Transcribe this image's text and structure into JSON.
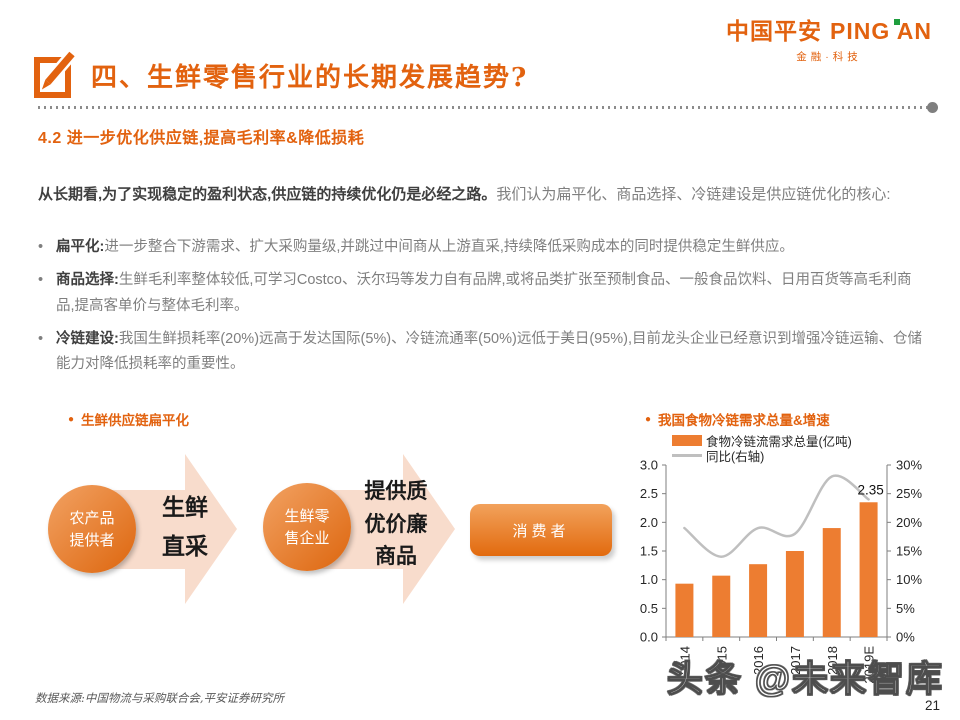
{
  "theme": {
    "accent": "#E2620F",
    "bar_color": "#ED7D31",
    "line_color": "#BFBFBF",
    "arrow_fill": "#F8DCCC",
    "circle_gradient_from": "#F2A263",
    "circle_gradient_to": "#DD660E",
    "logo_green": "#1E9E3E"
  },
  "header": {
    "logo_cn": "中国平安",
    "logo_en": "PING AN",
    "logo_tagline": "金融·科技"
  },
  "title": {
    "text": "四、生鲜零售行业的长期发展趋势?"
  },
  "subtitle": "4.2 进一步优化供应链,提高毛利率&降低损耗",
  "intro": {
    "bold": "从长期看,为了实现稳定的盈利状态,供应链的持续优化仍是必经之路。",
    "rest": "我们认为扁平化、商品选择、冷链建设是供应链优化的核心:"
  },
  "bullets": [
    {
      "marker": "•",
      "lead": "扁平化:",
      "text": "进一步整合下游需求、扩大采购量级,并跳过中间商从上游直采,持续降低采购成本的同时提供稳定生鲜供应。"
    },
    {
      "marker": "•",
      "lead": "商品选择:",
      "text": "生鲜毛利率整体较低,可学习Costco、沃尔玛等发力自有品牌,或将品类扩张至预制食品、一般食品饮料、日用百货等高毛利商品,提高客单价与整体毛利率。"
    },
    {
      "marker": "•",
      "lead": "冷链建设:",
      "text": "我国生鲜损耗率(20%)远高于发达国际(5%)、冷链流通率(50%)远低于美日(95%),目前龙头企业已经意识到增强冷链运输、仓储能力对降低损耗率的重要性。"
    }
  ],
  "diagram": {
    "marker": "●",
    "section_title": "生鲜供应链扁平化",
    "node1": "农产品\n提供者",
    "arrow1": "生鲜\n直采",
    "node2": "生鲜零\n售企业",
    "arrow2": "提供质\n优价廉\n商品",
    "node3": "消费者"
  },
  "chart": {
    "marker": "●",
    "section_title": "我国食物冷链需求总量&增速"
  },
  "chart_data": {
    "type": "bar",
    "title": "我国食物冷链需求总量&增速",
    "categories": [
      "2014",
      "2015",
      "2016",
      "2017",
      "2018",
      "2019E"
    ],
    "series": [
      {
        "name": "食物冷链流需求总量(亿吨)",
        "type": "bar",
        "axis": "left",
        "color": "#ED7D31",
        "values": [
          0.93,
          1.07,
          1.27,
          1.5,
          1.9,
          2.35
        ]
      },
      {
        "name": "同比(右轴)",
        "type": "line",
        "axis": "right",
        "color": "#BFBFBF",
        "values": [
          19,
          14,
          19,
          18,
          28,
          24
        ]
      }
    ],
    "left_axis": {
      "min": 0,
      "max": 3,
      "step": 0.5,
      "decimals": 1
    },
    "right_axis": {
      "min": 0,
      "max": 30,
      "step": 5,
      "suffix": "%"
    },
    "data_label": {
      "series": 0,
      "index": 5,
      "text": "2.35"
    },
    "legend_position": "top",
    "grid": false
  },
  "footer": {
    "source": "数据来源:中国物流与采购联合会,平安证券研究所",
    "watermark": "头条 @未来智库",
    "page": "21"
  }
}
